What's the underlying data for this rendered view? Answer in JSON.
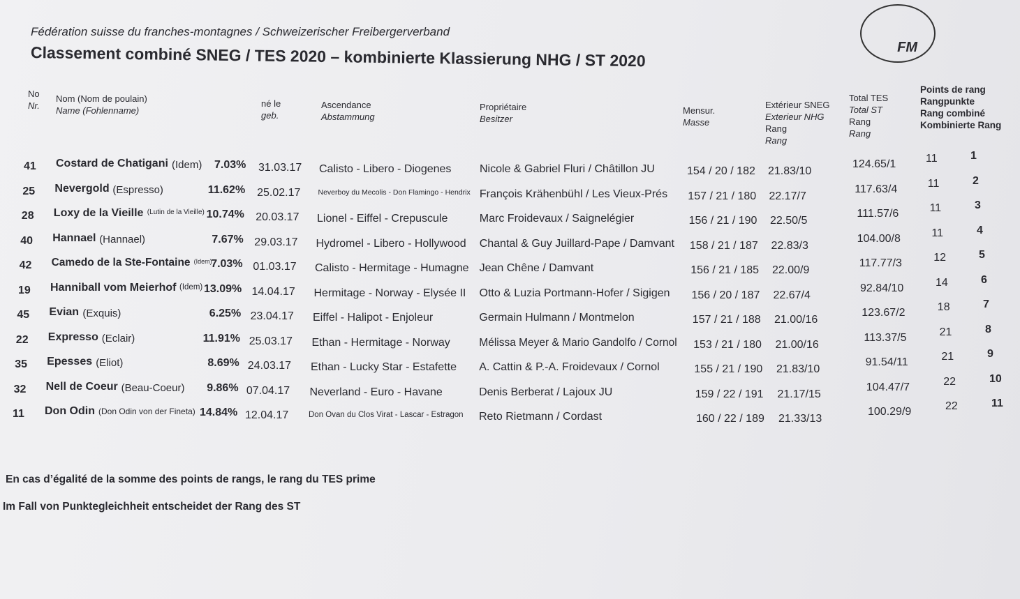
{
  "header": {
    "org": "Fédération suisse du franches-montagnes / Schweizerischer Freibergerverband",
    "title": "Classement combiné SNEG / TES 2020 – kombinierte Klassierung NHG / ST 2020",
    "logo": "FM"
  },
  "table": {
    "columns": [
      [
        "No",
        "Nr."
      ],
      [
        "Nom (Nom de poulain)",
        "Name (Fohlenname)"
      ],
      [
        "né le",
        "geb."
      ],
      [
        "Ascendance",
        "Abstammung"
      ],
      [
        "Propriétaire",
        "Besitzer"
      ],
      [
        "Mensur.",
        "Masse"
      ],
      [
        "Extérieur SNEG",
        "Exterieur NHG",
        "Rang",
        "Rang"
      ],
      [
        "Total TES",
        "Total ST",
        "Rang",
        "Rang"
      ],
      [
        "Points de rang",
        "Rangpunkte",
        "Rang combiné",
        "Kombinierte Rang"
      ]
    ],
    "rows": [
      [
        "41",
        "Costard de Chatigani",
        "(Idem)",
        "7.03%",
        "31.03.17",
        "Calisto - Libero - Diogenes",
        "Nicole & Gabriel Fluri / Châtillon JU",
        "154 / 20 / 182",
        "21.83/10",
        "124.65/1",
        "11",
        "1"
      ],
      [
        "25",
        "Nevergold",
        "(Espresso)",
        "11.62%",
        "25.02.17",
        "Neverboy du Mecolis - Don Flamingo - Hendrix",
        "François Krähenbühl / Les Vieux-Prés",
        "157 / 21 / 180",
        "22.17/7",
        "117.63/4",
        "11",
        "2"
      ],
      [
        "28",
        "Loxy de la Vieille",
        "(Lutin de la Vieille)",
        "10.74%",
        "20.03.17",
        "Lionel - Eiffel - Crepuscule",
        "Marc Froidevaux / Saignelégier",
        "156 / 21 / 190",
        "22.50/5",
        "111.57/6",
        "11",
        "3"
      ],
      [
        "40",
        "Hannael",
        "(Hannael)",
        "7.67%",
        "29.03.17",
        "Hydromel - Libero - Hollywood",
        "Chantal & Guy Juillard-Pape / Damvant",
        "158 / 21 / 187",
        "22.83/3",
        "104.00/8",
        "11",
        "4"
      ],
      [
        "42",
        "Camedo de la Ste-Fontaine",
        "(Idem)",
        "7.03%",
        "01.03.17",
        "Calisto - Hermitage - Humagne",
        "Jean Chêne / Damvant",
        "156 / 21 / 185",
        "22.00/9",
        "117.77/3",
        "12",
        "5"
      ],
      [
        "19",
        "Hanniball vom Meierhof",
        "(Idem)",
        "13.09%",
        "14.04.17",
        "Hermitage - Norway - Elysée II",
        "Otto & Luzia Portmann-Hofer / Sigigen",
        "156 / 20 / 187",
        "22.67/4",
        "92.84/10",
        "14",
        "6"
      ],
      [
        "45",
        "Evian",
        "(Exquis)",
        "6.25%",
        "23.04.17",
        "Eiffel - Halipot - Enjoleur",
        "Germain Hulmann / Montmelon",
        "157 / 21 / 188",
        "21.00/16",
        "123.67/2",
        "18",
        "7"
      ],
      [
        "22",
        "Expresso",
        "(Eclair)",
        "11.91%",
        "25.03.17",
        "Ethan - Hermitage - Norway",
        "Mélissa Meyer & Mario Gandolfo / Cornol",
        "153 / 21 / 180",
        "21.00/16",
        "113.37/5",
        "21",
        "8"
      ],
      [
        "35",
        "Epesses",
        "(Eliot)",
        "8.69%",
        "24.03.17",
        "Ethan - Lucky Star - Estafette",
        "A. Cattin & P.-A. Froidevaux / Cornol",
        "155 / 21 / 190",
        "21.83/10",
        "91.54/11",
        "21",
        "9"
      ],
      [
        "32",
        "Nell de Coeur",
        "(Beau-Coeur)",
        "9.86%",
        "07.04.17",
        "Neverland - Euro - Havane",
        "Denis Berberat / Lajoux JU",
        "159 / 22 / 191",
        "21.17/15",
        "104.47/7",
        "22",
        "10"
      ],
      [
        "11",
        "Don Odin",
        "(Don Odin von der Fineta)",
        "14.84%",
        "12.04.17",
        "Don Ovan du Clos Virat - Lascar - Estragon",
        "Reto Rietmann / Cordast",
        "160 / 22 / 189",
        "21.33/13",
        "100.29/9",
        "22",
        "11"
      ]
    ]
  },
  "footnotes": [
    "En cas d’égalité de la somme des points de rangs, le rang du TES prime",
    "Im Fall von Punktegleichheit entscheidet der Rang des ST"
  ]
}
